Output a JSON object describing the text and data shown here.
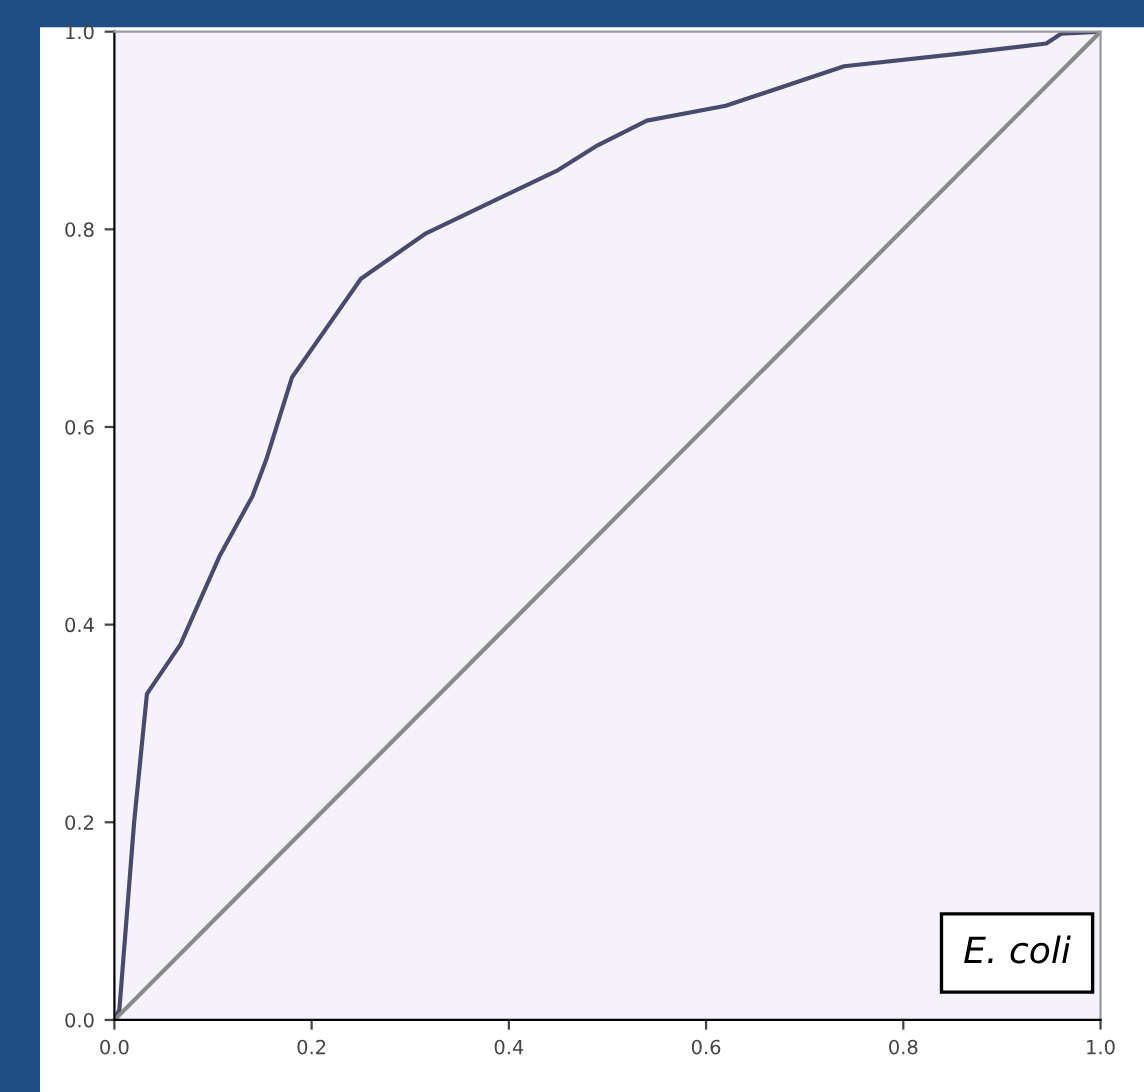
{
  "chart_data": {
    "type": "line",
    "xlim": [
      0,
      1
    ],
    "ylim": [
      0,
      1
    ],
    "xticks": [
      {
        "value": 0,
        "label": "0.0"
      },
      0.2,
      0.4,
      0.6,
      0.8,
      {
        "value": 1,
        "label": "1.0"
      }
    ],
    "yticks": [
      {
        "value": 0,
        "label": "0.0"
      },
      0.2,
      0.4,
      0.6,
      0.8,
      {
        "value": 1,
        "label": "1.0"
      }
    ],
    "grid": false,
    "legend": false,
    "annotations": [
      "E. coli"
    ],
    "series": [
      {
        "color": "#4a4a6e",
        "x": [
          0,
          0.005,
          0.02,
          0.033,
          0.067,
          0.087,
          0.107,
          0.14,
          0.154,
          0.18,
          0.215,
          0.25,
          0.316,
          0.4,
          0.45,
          0.49,
          0.54,
          0.62,
          0.74,
          0.86,
          0.945,
          0.96,
          1.0
        ],
        "values": [
          0,
          0.01,
          0.2,
          0.33,
          0.38,
          0.425,
          0.47,
          0.53,
          0.567,
          0.65,
          0.7,
          0.75,
          0.796,
          0.836,
          0.86,
          0.885,
          0.91,
          0.925,
          0.965,
          0.978,
          0.988,
          0.998,
          1.0
        ]
      },
      {
        "color": "#8a8a8a",
        "x": [
          0,
          1
        ],
        "values": [
          0,
          1
        ]
      }
    ]
  }
}
